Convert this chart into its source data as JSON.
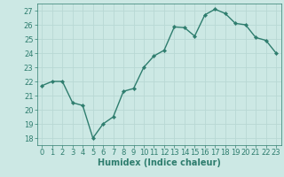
{
  "x": [
    0,
    1,
    2,
    3,
    4,
    5,
    6,
    7,
    8,
    9,
    10,
    11,
    12,
    13,
    14,
    15,
    16,
    17,
    18,
    19,
    20,
    21,
    22,
    23
  ],
  "y": [
    21.7,
    22.0,
    22.0,
    20.5,
    20.3,
    18.0,
    19.0,
    19.5,
    21.3,
    21.5,
    23.0,
    23.8,
    24.2,
    25.85,
    25.8,
    25.2,
    26.7,
    27.1,
    26.8,
    26.1,
    26.0,
    25.1,
    24.9,
    24.0
  ],
  "line_color": "#2e7d6e",
  "marker": "D",
  "marker_size": 2.2,
  "bg_color": "#cce8e4",
  "grid_color": "#b8d8d4",
  "axis_color": "#2e7d6e",
  "xlabel": "Humidex (Indice chaleur)",
  "xlim": [
    -0.5,
    23.5
  ],
  "ylim": [
    17.5,
    27.5
  ],
  "yticks": [
    18,
    19,
    20,
    21,
    22,
    23,
    24,
    25,
    26,
    27
  ],
  "xticks": [
    0,
    1,
    2,
    3,
    4,
    5,
    6,
    7,
    8,
    9,
    10,
    11,
    12,
    13,
    14,
    15,
    16,
    17,
    18,
    19,
    20,
    21,
    22,
    23
  ],
  "xlabel_fontsize": 7.0,
  "tick_fontsize": 6.0,
  "linewidth": 1.0
}
